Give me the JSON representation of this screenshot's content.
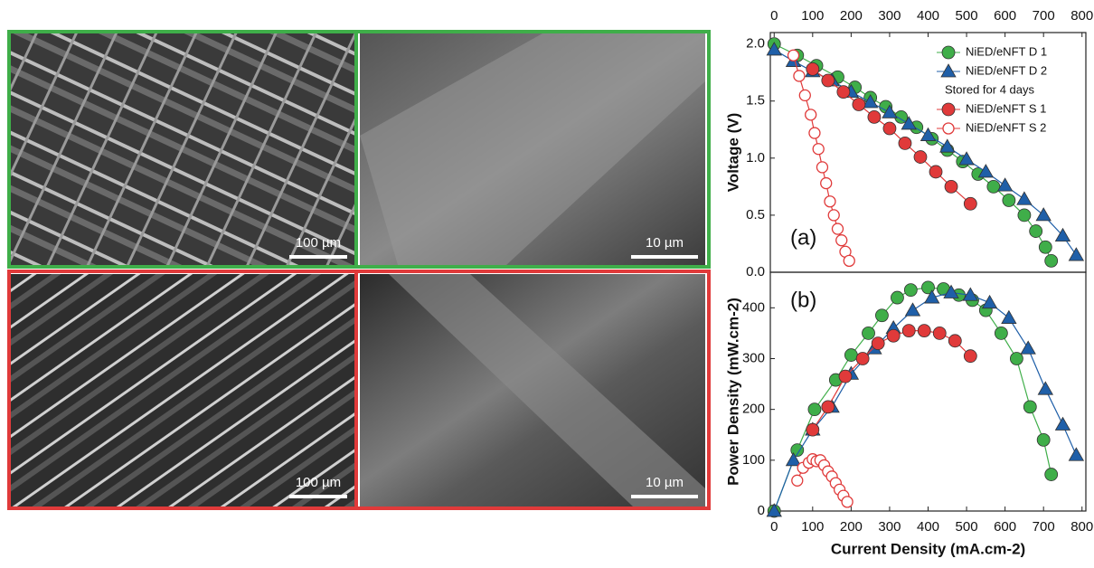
{
  "figure": {
    "scale_bars": [
      "100 µm",
      "10 µm",
      "100 µm",
      "10 µm"
    ]
  },
  "chart_data": [
    {
      "type": "scatter",
      "panel_label": "(a)",
      "y_label": "Voltage (V)",
      "x_axis_position": "top",
      "legend": "upper right",
      "legend_note": "Stored for 4 days",
      "xlim": [
        -10,
        810
      ],
      "ylim": [
        0,
        2.1
      ],
      "xticks": [
        0,
        100,
        200,
        300,
        400,
        500,
        600,
        700,
        800
      ],
      "yticks": [
        {
          "value": 0,
          "label": "0.0"
        },
        0.5,
        {
          "value": 1,
          "label": "1.0"
        },
        1.5,
        {
          "value": 2,
          "label": "2.0"
        }
      ],
      "series": [
        {
          "name": "NiED/eNFT D 1",
          "color": "#3fae49",
          "marker": "circle",
          "filled": true,
          "x": [
            0,
            60,
            110,
            165,
            210,
            250,
            290,
            330,
            370,
            410,
            450,
            490,
            530,
            570,
            610,
            650,
            680,
            705,
            720
          ],
          "values": [
            2.0,
            1.9,
            1.81,
            1.71,
            1.62,
            1.53,
            1.45,
            1.36,
            1.27,
            1.17,
            1.07,
            0.97,
            0.86,
            0.75,
            0.63,
            0.5,
            0.36,
            0.22,
            0.1
          ]
        },
        {
          "name": "NiED/eNFT D 2",
          "color": "#1f5fa8",
          "marker": "triangle",
          "filled": true,
          "x": [
            0,
            50,
            100,
            150,
            200,
            250,
            300,
            350,
            400,
            450,
            500,
            550,
            600,
            650,
            700,
            750,
            785
          ],
          "values": [
            1.95,
            1.85,
            1.76,
            1.68,
            1.58,
            1.49,
            1.4,
            1.3,
            1.2,
            1.1,
            0.99,
            0.88,
            0.76,
            0.64,
            0.5,
            0.32,
            0.15
          ]
        },
        {
          "name": "NiED/eNFT S 1",
          "color": "#e03a3a",
          "marker": "circle",
          "filled": true,
          "x": [
            100,
            140,
            180,
            220,
            260,
            300,
            340,
            380,
            420,
            460,
            510
          ],
          "values": [
            1.78,
            1.68,
            1.58,
            1.47,
            1.36,
            1.26,
            1.13,
            1.01,
            0.88,
            0.75,
            0.6
          ]
        },
        {
          "name": "NiED/eNFT S 2",
          "color": "#e03a3a",
          "marker": "circle",
          "filled": false,
          "x": [
            50,
            65,
            80,
            95,
            105,
            115,
            125,
            135,
            145,
            155,
            165,
            175,
            185,
            195
          ],
          "values": [
            1.9,
            1.72,
            1.55,
            1.38,
            1.22,
            1.08,
            0.92,
            0.78,
            0.62,
            0.5,
            0.38,
            0.28,
            0.18,
            0.1
          ]
        }
      ]
    },
    {
      "type": "scatter",
      "panel_label": "(b)",
      "y_label": "Power Density (mW.cm-2)",
      "x_label": "Current Density (mA.cm-2)",
      "x_axis_position": "bottom",
      "xlim": [
        -10,
        810
      ],
      "ylim": [
        0,
        470
      ],
      "xticks": [
        0,
        100,
        200,
        300,
        400,
        500,
        600,
        700,
        800
      ],
      "yticks": [
        0,
        100,
        200,
        300,
        400
      ],
      "series": [
        {
          "color": "#3fae49",
          "marker": "circle",
          "filled": true,
          "x": [
            0,
            60,
            105,
            160,
            200,
            245,
            280,
            320,
            355,
            400,
            440,
            480,
            515,
            550,
            590,
            630,
            665,
            700,
            720
          ],
          "values": [
            0,
            120,
            200,
            258,
            307,
            350,
            385,
            420,
            435,
            440,
            437,
            425,
            415,
            395,
            350,
            300,
            205,
            140,
            72
          ]
        },
        {
          "color": "#1f5fa8",
          "marker": "triangle",
          "filled": true,
          "x": [
            0,
            50,
            100,
            150,
            200,
            260,
            310,
            360,
            410,
            460,
            510,
            560,
            610,
            660,
            705,
            750,
            785
          ],
          "values": [
            0,
            100,
            160,
            205,
            270,
            320,
            360,
            395,
            420,
            430,
            425,
            410,
            380,
            320,
            240,
            170,
            110
          ]
        },
        {
          "color": "#e03a3a",
          "marker": "circle",
          "filled": true,
          "x": [
            100,
            140,
            185,
            230,
            270,
            310,
            350,
            390,
            430,
            470,
            510
          ],
          "values": [
            160,
            205,
            265,
            300,
            330,
            345,
            355,
            355,
            350,
            335,
            305
          ]
        },
        {
          "color": "#e03a3a",
          "marker": "circle",
          "filled": false,
          "x": [
            60,
            75,
            90,
            100,
            110,
            120,
            130,
            140,
            150,
            160,
            170,
            180,
            190
          ],
          "values": [
            60,
            85,
            95,
            102,
            98,
            100,
            90,
            78,
            68,
            55,
            42,
            30,
            18
          ]
        }
      ]
    }
  ]
}
